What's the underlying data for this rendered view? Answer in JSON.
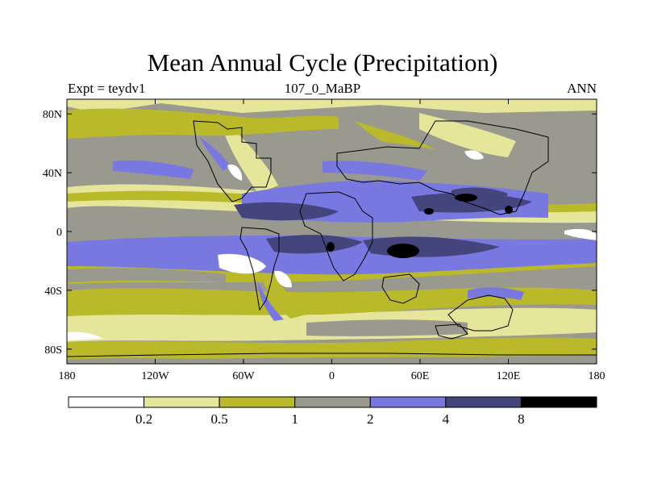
{
  "title": "Mean Annual Cycle (Precipitation)",
  "subtitle": {
    "left": "Expt = teydv1",
    "center": "107_0_MaBP",
    "right": "ANN"
  },
  "map": {
    "lat_labels": [
      "80N",
      "40N",
      "0",
      "40S",
      "80S"
    ],
    "lat_values": [
      80,
      40,
      0,
      -40,
      -80
    ],
    "lon_labels": [
      "180",
      "120W",
      "60W",
      "0",
      "60E",
      "120E",
      "180"
    ],
    "lon_values": [
      -180,
      -120,
      -60,
      0,
      60,
      120,
      180
    ]
  },
  "legend": {
    "levels": [
      "0.2",
      "0.5",
      "1",
      "2",
      "4",
      "8"
    ],
    "colors": [
      "#ffffff",
      "#e6e69a",
      "#b9b92a",
      "#999990",
      "#7878e0",
      "#45457e",
      "#000000"
    ]
  }
}
